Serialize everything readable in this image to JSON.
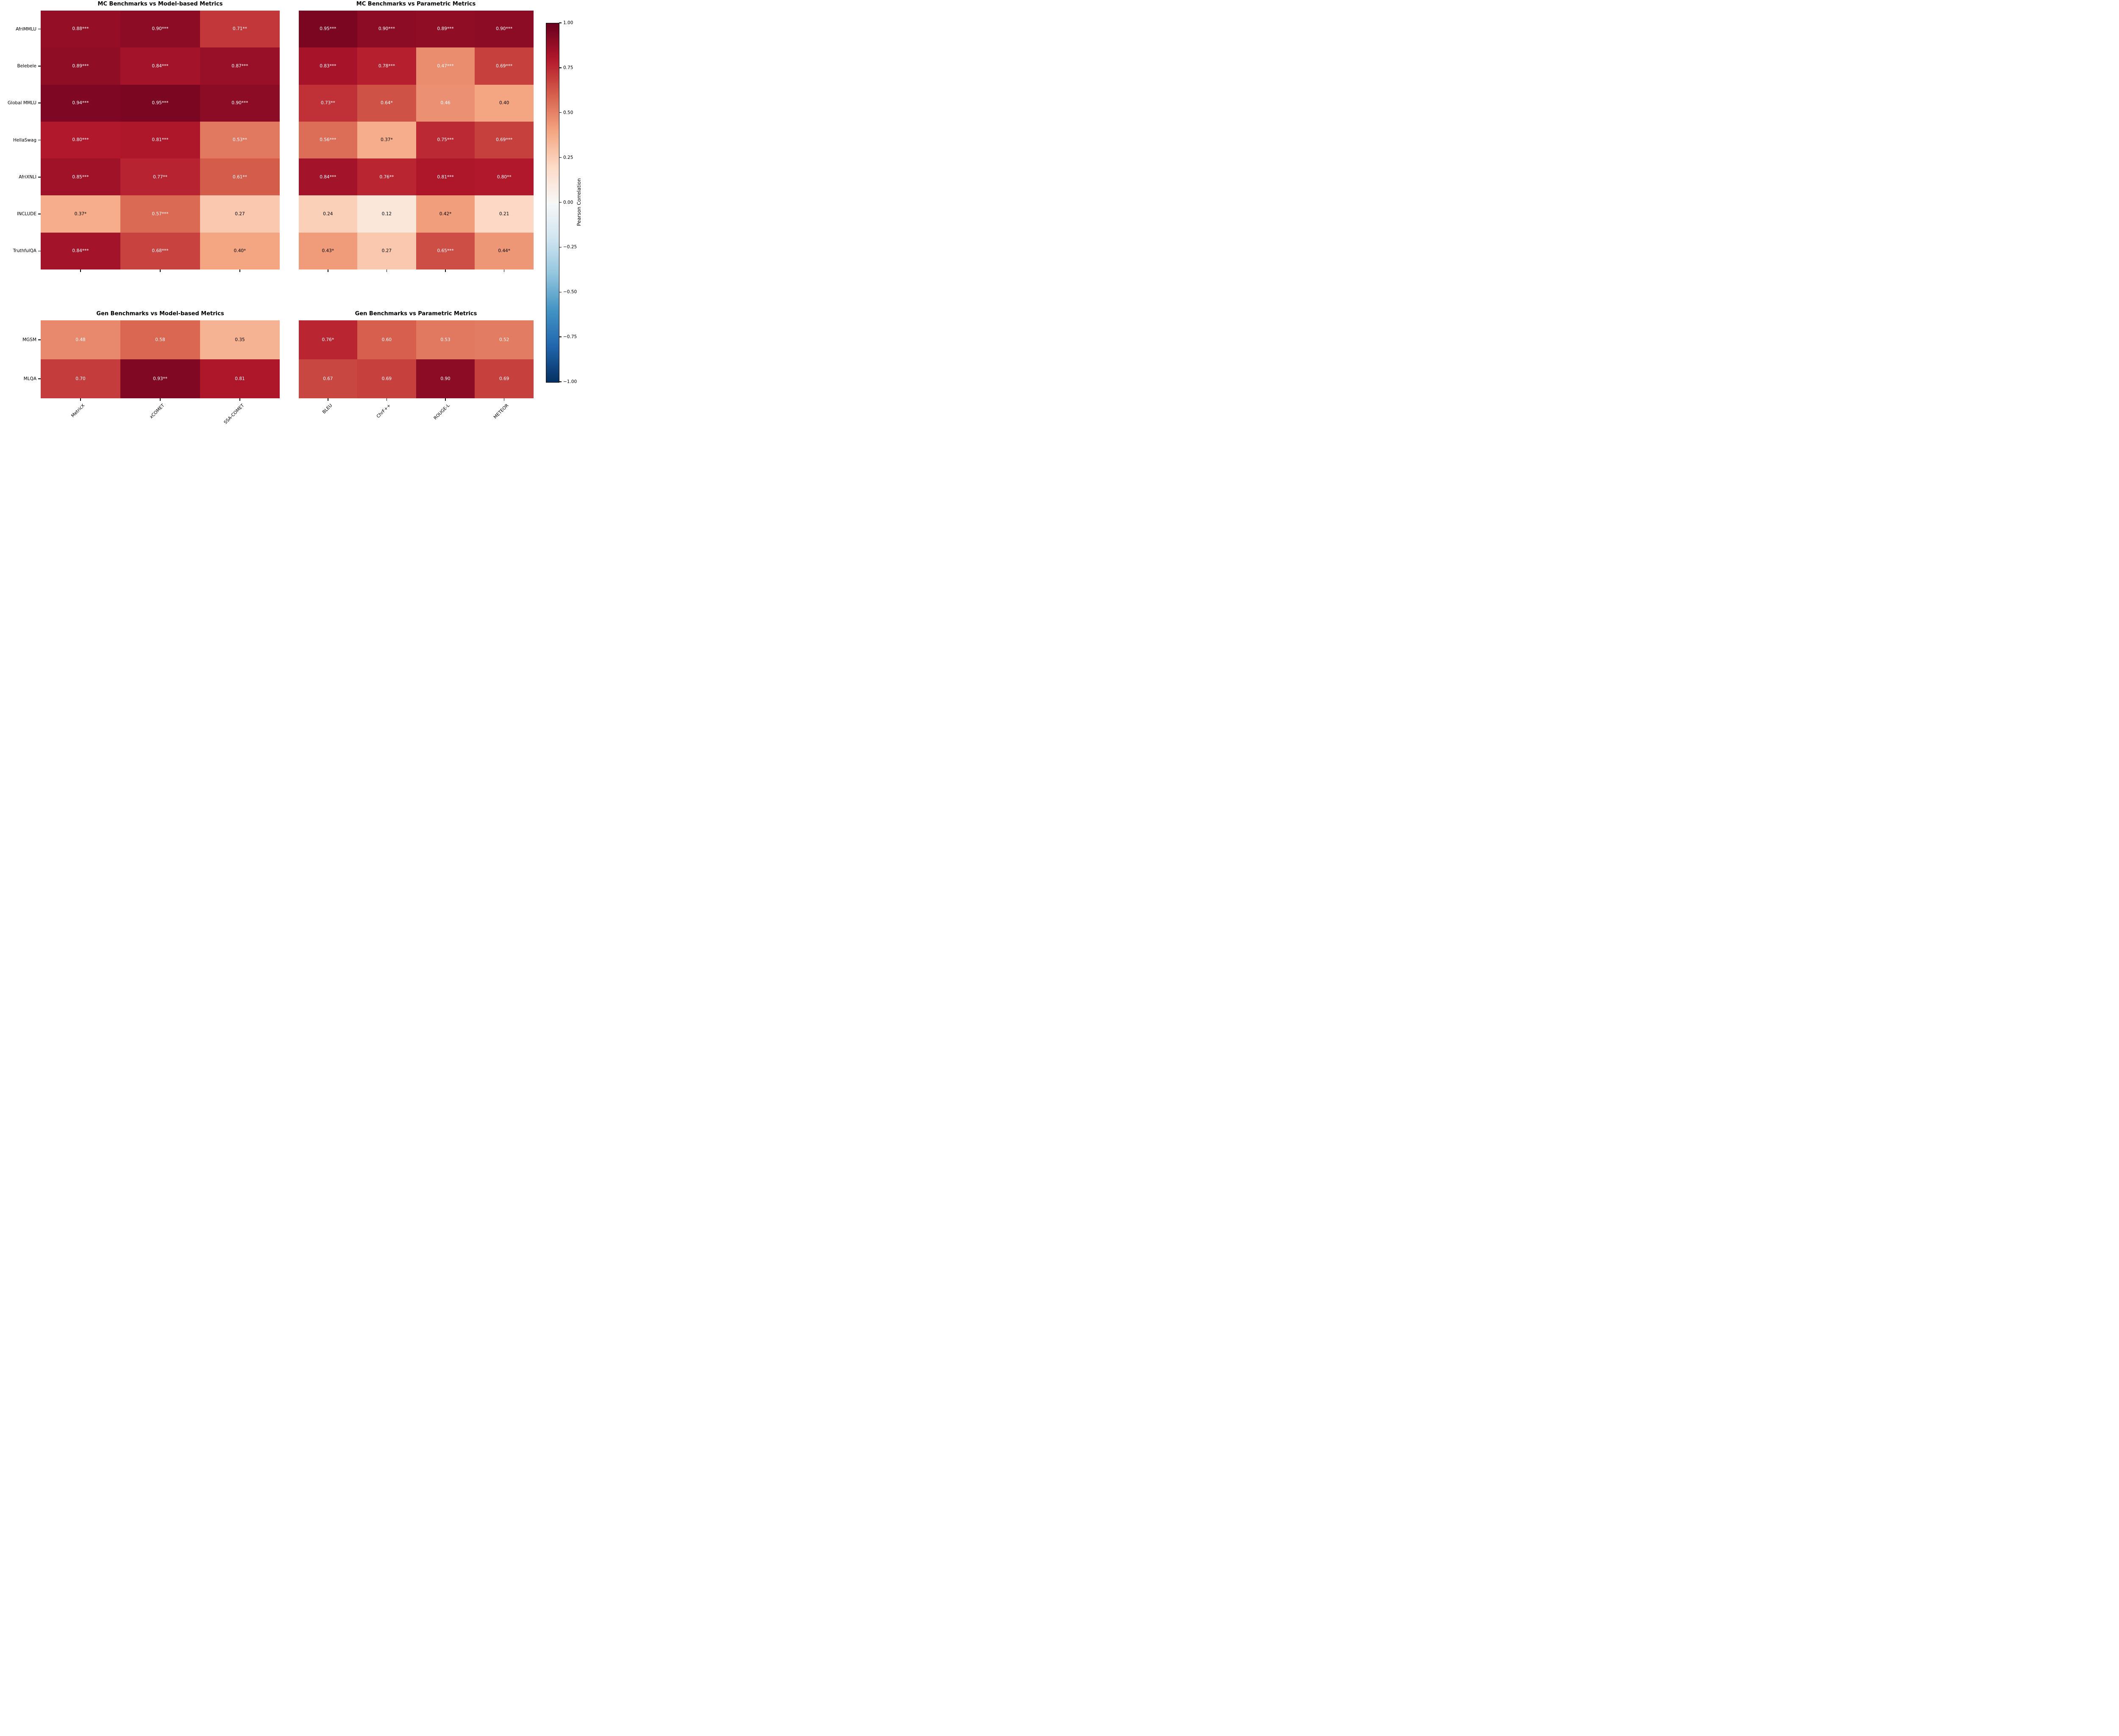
{
  "figure": {
    "background": "#ffffff"
  },
  "colormap": {
    "name": "RdBu_r",
    "domain": [
      -1,
      1
    ],
    "anchors": [
      "#053061",
      "#2166ac",
      "#4393c3",
      "#92c5de",
      "#d1e5f0",
      "#f7f7f7",
      "#fddbc7",
      "#f4a582",
      "#d6604d",
      "#b2182b",
      "#67001f"
    ],
    "white_text_threshold": 0.45,
    "annotation_light_color": "#ffffff",
    "annotation_dark_color": "#000000"
  },
  "colorbar": {
    "label": "Pearson Correlation",
    "range": [
      -1,
      1
    ],
    "ticks": [
      "1.00",
      "0.75",
      "0.50",
      "0.25",
      "0.00",
      "−0.25",
      "−0.50",
      "−0.75",
      "−1.00"
    ]
  },
  "chart_data": [
    {
      "type": "heatmap",
      "title": "MC Benchmarks vs Model-based Metrics",
      "rows": [
        "AfriMMLU",
        "Belebele",
        "Global MMLU",
        "HellaSwag",
        "AfriXNLI",
        "INCLUDE",
        "TruthfulQA"
      ],
      "columns": [
        "MetricX",
        "xCOMET",
        "SSA-COMET"
      ],
      "values": [
        [
          0.88,
          0.9,
          0.71
        ],
        [
          0.89,
          0.84,
          0.87
        ],
        [
          0.94,
          0.95,
          0.9
        ],
        [
          0.8,
          0.81,
          0.53
        ],
        [
          0.85,
          0.77,
          0.61
        ],
        [
          0.37,
          0.57,
          0.27
        ],
        [
          0.84,
          0.68,
          0.4
        ]
      ],
      "labels": [
        [
          "0.88***",
          "0.90***",
          "0.71**"
        ],
        [
          "0.89***",
          "0.84***",
          "0.87***"
        ],
        [
          "0.94***",
          "0.95***",
          "0.90***"
        ],
        [
          "0.80***",
          "0.81***",
          "0.53**"
        ],
        [
          "0.85***",
          "0.77**",
          "0.61**"
        ],
        [
          "0.37*",
          "0.57***",
          "0.27"
        ],
        [
          "0.84***",
          "0.68***",
          "0.40*"
        ]
      ],
      "show_row_labels": true,
      "show_col_labels": false
    },
    {
      "type": "heatmap",
      "title": "MC Benchmarks vs Parametric Metrics",
      "rows": [
        "AfriMMLU",
        "Belebele",
        "Global MMLU",
        "HellaSwag",
        "AfriXNLI",
        "INCLUDE",
        "TruthfulQA"
      ],
      "columns": [
        "BLEU",
        "ChrF++",
        "ROUGE-L",
        "METEOR"
      ],
      "values": [
        [
          0.95,
          0.9,
          0.89,
          0.9
        ],
        [
          0.83,
          0.78,
          0.47,
          0.69
        ],
        [
          0.73,
          0.64,
          0.46,
          0.4
        ],
        [
          0.56,
          0.37,
          0.75,
          0.69
        ],
        [
          0.84,
          0.76,
          0.81,
          0.8
        ],
        [
          0.24,
          0.12,
          0.42,
          0.21
        ],
        [
          0.43,
          0.27,
          0.65,
          0.44
        ]
      ],
      "labels": [
        [
          "0.95***",
          "0.90***",
          "0.89***",
          "0.90***"
        ],
        [
          "0.83***",
          "0.78***",
          "0.47***",
          "0.69***"
        ],
        [
          "0.73**",
          "0.64*",
          "0.46",
          "0.40"
        ],
        [
          "0.56***",
          "0.37*",
          "0.75***",
          "0.69***"
        ],
        [
          "0.84***",
          "0.76**",
          "0.81***",
          "0.80**"
        ],
        [
          "0.24",
          "0.12",
          "0.42*",
          "0.21"
        ],
        [
          "0.43*",
          "0.27",
          "0.65***",
          "0.44*"
        ]
      ],
      "show_row_labels": false,
      "show_col_labels": false
    },
    {
      "type": "heatmap",
      "title": "Gen Benchmarks vs Model-based Metrics",
      "rows": [
        "MGSM",
        "MLQA"
      ],
      "columns": [
        "MetricX",
        "xCOMET",
        "SSA-COMET"
      ],
      "values": [
        [
          0.48,
          0.58,
          0.35
        ],
        [
          0.7,
          0.93,
          0.81
        ]
      ],
      "labels": [
        [
          "0.48",
          "0.58",
          "0.35"
        ],
        [
          "0.70",
          "0.93**",
          "0.81"
        ]
      ],
      "show_row_labels": true,
      "show_col_labels": true
    },
    {
      "type": "heatmap",
      "title": "Gen Benchmarks vs Parametric Metrics",
      "rows": [
        "MGSM",
        "MLQA"
      ],
      "columns": [
        "BLEU",
        "ChrF++",
        "ROUGE-L",
        "METEOR"
      ],
      "values": [
        [
          0.76,
          0.6,
          0.53,
          0.52
        ],
        [
          0.67,
          0.69,
          0.9,
          0.69
        ]
      ],
      "labels": [
        [
          "0.76*",
          "0.60",
          "0.53",
          "0.52"
        ],
        [
          "0.67",
          "0.69",
          "0.90",
          "0.69"
        ]
      ],
      "show_row_labels": false,
      "show_col_labels": true
    }
  ]
}
